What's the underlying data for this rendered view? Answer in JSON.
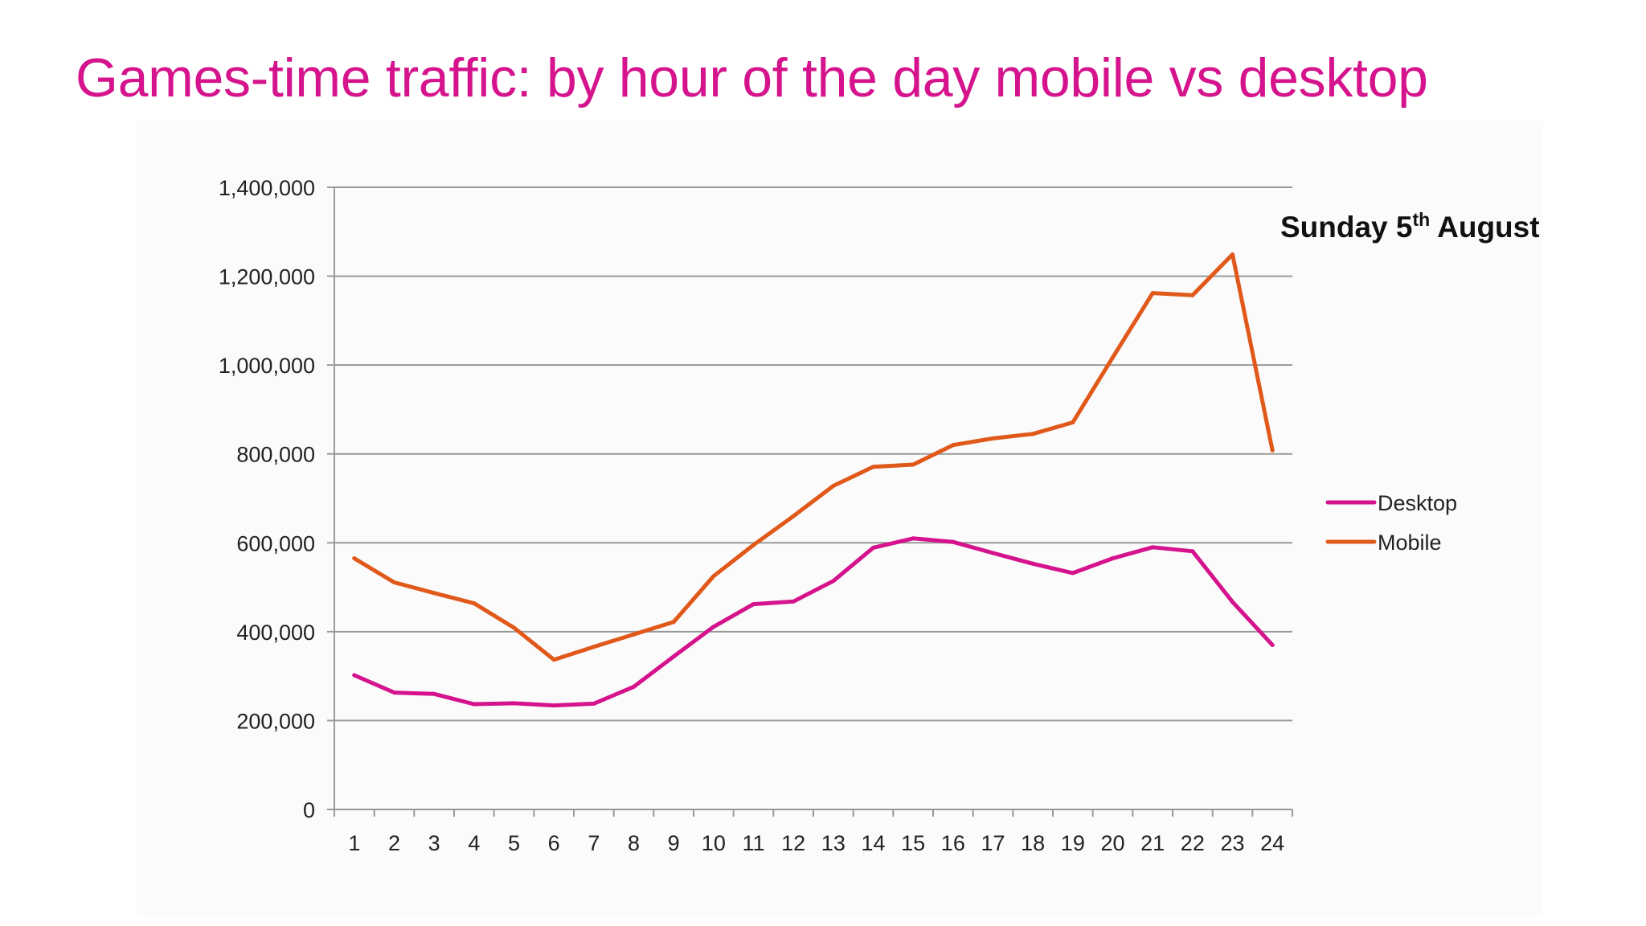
{
  "title": "Games-time traffic: by hour of the day mobile vs desktop",
  "annotation": {
    "main": "Sunday 5",
    "sup": "th",
    "rest": " August"
  },
  "colors": {
    "title": "#d4138d",
    "desktop": "#d4138d",
    "mobile": "#e0591a",
    "grid": "#999999"
  },
  "chart_data": {
    "type": "line",
    "categories": [
      "1",
      "2",
      "3",
      "4",
      "5",
      "6",
      "7",
      "8",
      "9",
      "10",
      "11",
      "12",
      "13",
      "14",
      "15",
      "16",
      "17",
      "18",
      "19",
      "20",
      "21",
      "22",
      "23",
      "24"
    ],
    "ylim": [
      0,
      1400000
    ],
    "yticks": [
      "0",
      "200,000",
      "400,000",
      "600,000",
      "800,000",
      "1,000,000",
      "1,200,000",
      "1,400,000"
    ],
    "ytick_values": [
      0,
      200000,
      400000,
      600000,
      800000,
      1000000,
      1200000,
      1400000
    ],
    "grid": true,
    "legend_position": "right",
    "series": [
      {
        "name": "Desktop",
        "color": "#d4138d",
        "values": [
          302000,
          263000,
          260000,
          237000,
          239000,
          234000,
          238000,
          276000,
          344000,
          411000,
          462000,
          468000,
          514000,
          589000,
          610000,
          602000,
          577000,
          553000,
          532000,
          565000,
          590000,
          581000,
          467000,
          370000
        ]
      },
      {
        "name": "Mobile",
        "color": "#e0591a",
        "values": [
          565000,
          511000,
          487000,
          464000,
          409000,
          337000,
          366000,
          394000,
          422000,
          525000,
          595000,
          660000,
          728000,
          771000,
          776000,
          820000,
          835000,
          845000,
          871000,
          1017000,
          1162000,
          1157000,
          1249000,
          808000
        ]
      }
    ]
  }
}
